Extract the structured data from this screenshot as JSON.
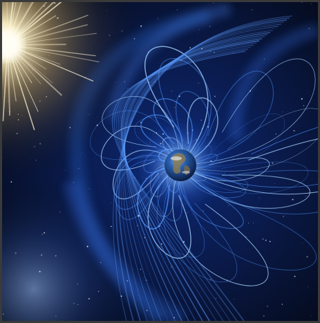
{
  "scene": {
    "subject": "earth-magnetosphere-illustration",
    "elements": [
      "sun",
      "earth",
      "magnetic-field-lines",
      "bow-shock",
      "starfield",
      "galaxy-haze"
    ],
    "colors": {
      "space_dark": "#050814",
      "space_mid": "#0b1a44",
      "field_blue": "#3f8cff",
      "field_light": "#9fd0ff",
      "sun_core": "#fffbe6",
      "sun_glow": "#d8c07a",
      "earth_ocean": "#1f4f9a",
      "earth_land": "#8a7a52"
    }
  }
}
